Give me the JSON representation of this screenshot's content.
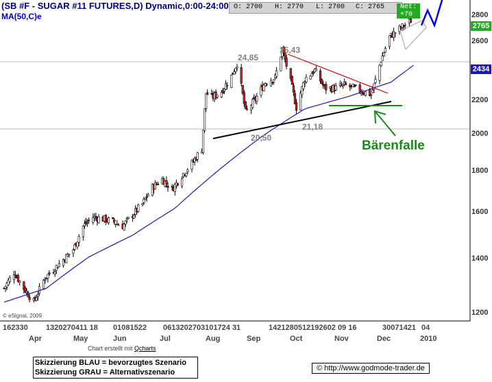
{
  "header": {
    "title": "(SB #F - SUGAR #11 FUTURES,D) Dynamic,0:00-24:00",
    "ma_label": "MA(50,C)e",
    "ohlc": {
      "open": "O: 2700",
      "high": "H: 2770",
      "low": "L: 2700",
      "close": "C: 2765",
      "net": "Net: +70"
    }
  },
  "price_tags": {
    "last": "2765",
    "ma": "2434"
  },
  "colors": {
    "candle_up": "#ffffff",
    "candle_down": "#d42020",
    "wick": "#000000",
    "ma_line": "#1a1ab0",
    "resistance_line": "#cc0000",
    "support_line": "#000000",
    "bear_trap": "#1a8a1a",
    "scenario_blue": "#0000ee",
    "scenario_grey": "#a0a0a0",
    "last_tag": "#22aa22",
    "ma_tag": "#1a1ab0"
  },
  "annotations": {
    "high1": "24,85",
    "high2": "25,43",
    "low1": "20,50",
    "low2": "21,18",
    "bear_trap": "Bärenfalle"
  },
  "x_axis": {
    "date_rows": [
      {
        "text": "162330"
      },
      {
        "text": "1320270411 18"
      },
      {
        "text": "01081522"
      },
      {
        "text": "0613202703101724 31"
      },
      {
        "text": "1421280512192602 09 16"
      },
      {
        "text": "30071421"
      },
      {
        "text": "04"
      }
    ],
    "months": [
      "Apr",
      "May",
      "Jun",
      "Jul",
      "Aug",
      "Sep",
      "Oct",
      "Nov",
      "Dec",
      "2010"
    ]
  },
  "footer": {
    "esignal": "© eSignal, 2009",
    "created": "Chart erstellt mit",
    "qcharts": "Qcharts",
    "legend_blue": "Skizzierung BLAU = bevorzugtes Szenario",
    "legend_grey": "Skizzierung GRAU = Alternativszenario",
    "credit": "© http://www.godmode-trader.de"
  },
  "chart_data": {
    "type": "candlestick",
    "title": "(SB #F - SUGAR #11 FUTURES,D) Dynamic,0:00-24:00",
    "y_scale": "log",
    "ylim": [
      1180,
      2920
    ],
    "y_ticks": [
      1200,
      1400,
      1600,
      1800,
      2000,
      2200,
      2400,
      2600,
      2800
    ],
    "x_range": [
      "2009-03-16",
      "2010-01-08"
    ],
    "series": [
      {
        "name": "SB #F close (approx.)",
        "anchors": [
          [
            "2009-03-16",
            1290
          ],
          [
            "2009-03-23",
            1350
          ],
          [
            "2009-03-30",
            1290
          ],
          [
            "2009-04-06",
            1240
          ],
          [
            "2009-04-14",
            1330
          ],
          [
            "2009-04-20",
            1360
          ],
          [
            "2009-04-27",
            1400
          ],
          [
            "2009-05-04",
            1440
          ],
          [
            "2009-05-11",
            1540
          ],
          [
            "2009-05-18",
            1580
          ],
          [
            "2009-05-26",
            1570
          ],
          [
            "2009-06-01",
            1560
          ],
          [
            "2009-06-08",
            1540
          ],
          [
            "2009-06-15",
            1590
          ],
          [
            "2009-06-22",
            1640
          ],
          [
            "2009-06-29",
            1720
          ],
          [
            "2009-07-06",
            1760
          ],
          [
            "2009-07-13",
            1710
          ],
          [
            "2009-07-20",
            1780
          ],
          [
            "2009-07-27",
            1840
          ],
          [
            "2009-08-03",
            1920
          ],
          [
            "2009-08-06",
            2250
          ],
          [
            "2009-08-10",
            2220
          ],
          [
            "2009-08-17",
            2260
          ],
          [
            "2009-08-24",
            2360
          ],
          [
            "2009-08-28",
            2450
          ],
          [
            "2009-09-03",
            2130
          ],
          [
            "2009-09-10",
            2210
          ],
          [
            "2009-09-17",
            2320
          ],
          [
            "2009-09-24",
            2350
          ],
          [
            "2009-09-29",
            2545
          ],
          [
            "2009-10-05",
            2320
          ],
          [
            "2009-10-09",
            2160
          ],
          [
            "2009-10-15",
            2340
          ],
          [
            "2009-10-22",
            2400
          ],
          [
            "2009-10-29",
            2280
          ],
          [
            "2009-11-05",
            2280
          ],
          [
            "2009-11-12",
            2300
          ],
          [
            "2009-11-19",
            2280
          ],
          [
            "2009-11-25",
            2260
          ],
          [
            "2009-12-01",
            2240
          ],
          [
            "2009-12-04",
            2330
          ],
          [
            "2009-12-08",
            2470
          ],
          [
            "2009-12-14",
            2640
          ],
          [
            "2009-12-21",
            2700
          ],
          [
            "2009-12-29",
            2765
          ]
        ]
      },
      {
        "name": "MA(50,C)e",
        "anchors": [
          [
            "2009-03-16",
            1240
          ],
          [
            "2009-04-15",
            1290
          ],
          [
            "2009-05-15",
            1410
          ],
          [
            "2009-06-15",
            1500
          ],
          [
            "2009-07-15",
            1620
          ],
          [
            "2009-08-14",
            1800
          ],
          [
            "2009-09-15",
            1990
          ],
          [
            "2009-10-15",
            2150
          ],
          [
            "2009-11-16",
            2230
          ],
          [
            "2009-12-15",
            2320
          ],
          [
            "2009-12-31",
            2434
          ]
        ]
      }
    ]
  }
}
